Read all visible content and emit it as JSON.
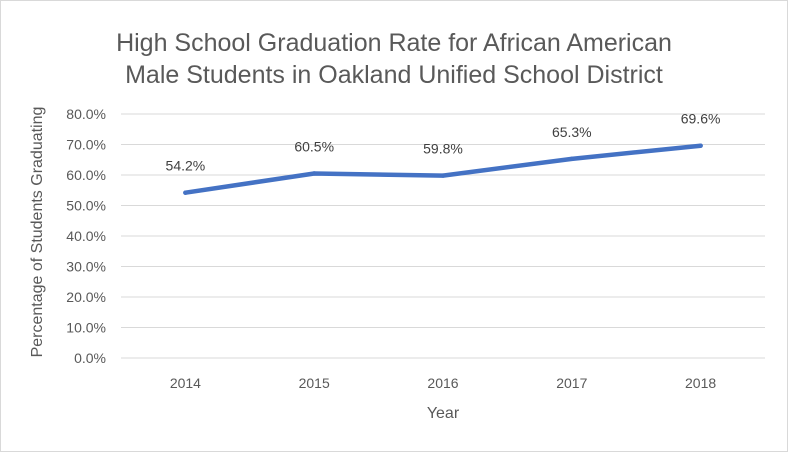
{
  "chart_data": {
    "type": "line",
    "title_line1": "High School Graduation Rate for African American",
    "title_line2": "Male Students in Oakland Unified School District",
    "xlabel": "Year",
    "ylabel": "Percentage of Students Graduating",
    "categories": [
      "2014",
      "2015",
      "2016",
      "2017",
      "2018"
    ],
    "series": [
      {
        "values": [
          54.2,
          60.5,
          59.8,
          65.3,
          69.6
        ],
        "labels": [
          "54.2%",
          "60.5%",
          "59.8%",
          "65.3%",
          "69.6%"
        ],
        "color": "#4472c4"
      }
    ],
    "ylim": [
      0,
      80
    ],
    "yticks": [
      "0.0%",
      "10.0%",
      "20.0%",
      "30.0%",
      "40.0%",
      "50.0%",
      "60.0%",
      "70.0%",
      "80.0%"
    ],
    "grid": true,
    "legend": "none",
    "colors": {
      "grid": "#d9d9d9",
      "text": "#595959"
    }
  }
}
